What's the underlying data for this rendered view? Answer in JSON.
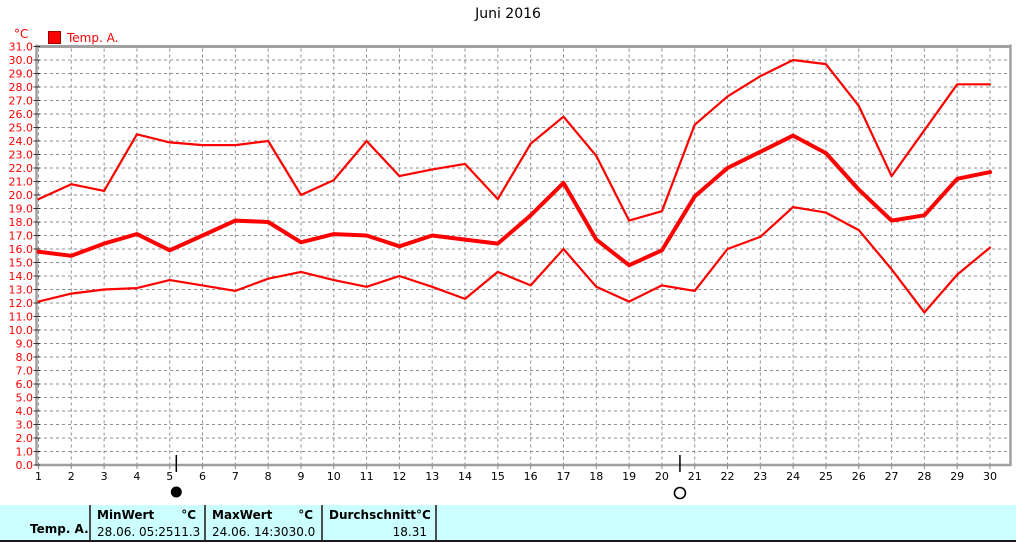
{
  "title": "Juni 2016",
  "legend": {
    "unit_label": "°C",
    "series_label": "Temp. A."
  },
  "colors": {
    "line": "#ff0000",
    "grid": "#8f8f8f",
    "frame": "#a0a0a0",
    "y_label": "#ff0000",
    "x_label": "#000000",
    "table_bg": "#ccffff",
    "table_border": "#4d4d4d"
  },
  "chart_data": {
    "type": "line",
    "title": "Juni 2016",
    "xlabel": "",
    "ylabel": "°C",
    "x": [
      1,
      2,
      3,
      4,
      5,
      6,
      7,
      8,
      9,
      10,
      11,
      12,
      13,
      14,
      15,
      16,
      17,
      18,
      19,
      20,
      21,
      22,
      23,
      24,
      25,
      26,
      27,
      28,
      29,
      30
    ],
    "ylim": [
      0,
      31
    ],
    "ytick_step": 1.0,
    "grid": "dashed",
    "legend_position": "top-left",
    "series": [
      {
        "name": "Temp. A. max",
        "values": [
          19.7,
          20.8,
          20.3,
          24.5,
          23.9,
          23.7,
          23.7,
          24.0,
          20.0,
          21.1,
          24.0,
          21.4,
          21.9,
          22.3,
          19.7,
          23.8,
          25.8,
          22.9,
          18.1,
          18.8,
          25.2,
          27.3,
          28.8,
          30.0,
          29.7,
          26.6,
          21.4,
          24.8,
          28.2,
          28.2
        ],
        "width": 2.2
      },
      {
        "name": "Temp. A. mean",
        "values": [
          15.8,
          15.5,
          16.4,
          17.1,
          15.9,
          17.0,
          18.1,
          18.0,
          16.5,
          17.1,
          17.0,
          16.2,
          17.0,
          16.7,
          16.4,
          18.5,
          20.9,
          16.7,
          14.8,
          15.9,
          19.9,
          22.0,
          23.2,
          24.4,
          23.1,
          20.4,
          18.1,
          18.5,
          21.2,
          21.7
        ],
        "width": 4
      },
      {
        "name": "Temp. A. min",
        "values": [
          12.1,
          12.7,
          13.0,
          13.1,
          13.7,
          13.3,
          12.9,
          13.8,
          14.3,
          13.7,
          13.2,
          14.0,
          13.2,
          12.3,
          14.3,
          13.3,
          16.0,
          13.2,
          12.1,
          13.3,
          12.9,
          16.0,
          16.9,
          19.1,
          18.7,
          17.4,
          14.5,
          11.3,
          14.1,
          16.1
        ],
        "width": 2.2
      }
    ],
    "annotations": [
      {
        "type": "new-moon",
        "symbol": "●",
        "x": 5.2
      },
      {
        "type": "full-moon",
        "symbol": "○",
        "x": 20.55
      }
    ]
  },
  "table": {
    "row_label": "Temp. A.",
    "columns": [
      {
        "header": "MinWert",
        "unit": "°C",
        "value": "28.06.  05:25",
        "reading": "11.3"
      },
      {
        "header": "MaxWert",
        "unit": "°C",
        "value": "24.06.  14:30",
        "reading": "30.0"
      },
      {
        "header": "Durchschnitt",
        "unit": "°C",
        "value": "",
        "reading": "18.31"
      }
    ]
  }
}
